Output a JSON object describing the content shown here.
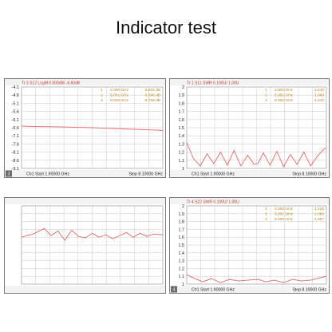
{
  "page": {
    "title": "Indicator test"
  },
  "chart_data": [
    {
      "type": "line",
      "header": "Tr 3  S12 LogM 0.500dB/  -6.60dB",
      "tick_labels": [
        "-4.1",
        "-4.6",
        "-5.1",
        "-5.6",
        "-6.1",
        "-6.6",
        "-7.1",
        "-7.6",
        "-8.1",
        "-8.6",
        "-9.1"
      ],
      "ylim": [
        -9.1,
        -4.1
      ],
      "xlim": [
        1.9,
        8.1
      ],
      "footer_left": "Ch1  Start  1.90000 GHz",
      "footer_right": "Stop  8.10000 GHz",
      "panel_number": "3",
      "markers": [
        {
          "id": "1",
          "freq": "2.000 GHz",
          "value": "-6.531 dB"
        },
        {
          "id": "2",
          "freq": "5.061 GHz",
          "value": "-6.596 dB"
        },
        {
          "id": "3",
          "freq": "8.000 GHz",
          "value": "-6.759 dB"
        }
      ],
      "series": [
        {
          "x": [
            1.9,
            2.5,
            3.5,
            4.5,
            5.061,
            5.5,
            6.5,
            7.5,
            8.0,
            8.1
          ],
          "values": [
            -6.5,
            -6.53,
            -6.55,
            -6.58,
            -6.6,
            -6.63,
            -6.68,
            -6.73,
            -6.76,
            -6.77
          ]
        }
      ]
    },
    {
      "type": "line",
      "header": "Tr 1  S11 SWR 0.100U/  1.00U",
      "tick_labels": [
        "2",
        "1.9",
        "1.8",
        "1.7",
        "1.6",
        "1.5",
        "1.4",
        "1.3",
        "1.2",
        "1.1",
        "1"
      ],
      "ylim": [
        1.0,
        2.0
      ],
      "xlim": [
        1.9,
        8.1
      ],
      "footer_left": "Ch1  Start  1.90000 GHz",
      "footer_right": "Stop  8.10000 GHz",
      "panel_number": "",
      "markers": [
        {
          "id": "1",
          "freq": "2.000 GHz",
          "value": "1.249"
        },
        {
          "id": "2",
          "freq": "5.061 GHz",
          "value": "1.060"
        },
        {
          "id": "3",
          "freq": "8.000 GHz",
          "value": "1.242"
        }
      ],
      "series": [
        {
          "x": [
            1.9,
            2.0,
            2.2,
            2.5,
            2.8,
            3.1,
            3.4,
            3.7,
            4.0,
            4.3,
            4.6,
            4.9,
            5.061,
            5.3,
            5.6,
            5.9,
            6.2,
            6.5,
            6.8,
            7.1,
            7.4,
            7.7,
            8.0,
            8.1
          ],
          "values": [
            1.32,
            1.25,
            1.12,
            1.03,
            1.18,
            1.06,
            1.2,
            1.04,
            1.22,
            1.03,
            1.16,
            1.05,
            1.06,
            1.19,
            1.04,
            1.21,
            1.02,
            1.17,
            1.05,
            1.2,
            1.03,
            1.15,
            1.24,
            1.25
          ]
        }
      ]
    },
    {
      "type": "line",
      "header": "",
      "tick_labels": [
        "",
        "",
        "",
        "",
        "",
        "",
        "",
        "",
        "",
        "",
        ""
      ],
      "ylim": [
        0,
        10
      ],
      "xlim": [
        1.9,
        8.1
      ],
      "footer_left": "",
      "footer_right": "",
      "panel_number": "",
      "markers": [],
      "series": [
        {
          "x": [
            1.9,
            2.4,
            2.9,
            3.2,
            3.5,
            3.8,
            4.1,
            4.4,
            4.7,
            5.0,
            5.3,
            5.6,
            5.9,
            6.2,
            6.5,
            6.8,
            7.1,
            7.4,
            7.7,
            8.1
          ],
          "values": [
            6.0,
            6.4,
            7.1,
            6.2,
            6.8,
            5.6,
            6.9,
            6.1,
            5.9,
            6.5,
            6.0,
            6.3,
            5.8,
            6.2,
            6.6,
            6.0,
            6.5,
            6.1,
            6.4,
            6.3
          ]
        }
      ]
    },
    {
      "type": "line",
      "header": "Tr 4  S22 SWR 0.100U/  1.00U",
      "tick_labels": [
        "2",
        "1.9",
        "1.8",
        "1.7",
        "1.6",
        "1.5",
        "1.4",
        "1.3",
        "1.2",
        "1.1",
        "1"
      ],
      "ylim": [
        1.0,
        2.0
      ],
      "xlim": [
        1.9,
        8.1
      ],
      "footer_left": "Ch1  Start  1.90000 GHz",
      "footer_right": "Stop  8.10000 GHz",
      "panel_number": "4",
      "markers": [
        {
          "id": "1",
          "freq": "2.000 GHz",
          "value": "1.129"
        },
        {
          "id": "2",
          "freq": "5.061 GHz",
          "value": "1.060"
        },
        {
          "id": "3",
          "freq": "8.000 GHz",
          "value": "1.097"
        }
      ],
      "series": [
        {
          "x": [
            1.9,
            2.2,
            2.6,
            3.0,
            3.4,
            3.8,
            4.2,
            4.6,
            5.061,
            5.4,
            5.8,
            6.2,
            6.6,
            7.0,
            7.4,
            7.8,
            8.1
          ],
          "values": [
            1.12,
            1.08,
            1.03,
            1.07,
            1.02,
            1.06,
            1.04,
            1.05,
            1.06,
            1.03,
            1.05,
            1.02,
            1.06,
            1.04,
            1.05,
            1.08,
            1.1
          ]
        }
      ]
    }
  ],
  "colors": {
    "trace": "#e36a6a",
    "marker_text": "#b8861b",
    "header_text": "#c0392b",
    "grid": "#c8c8c8",
    "frame": "#7a7a7a"
  }
}
